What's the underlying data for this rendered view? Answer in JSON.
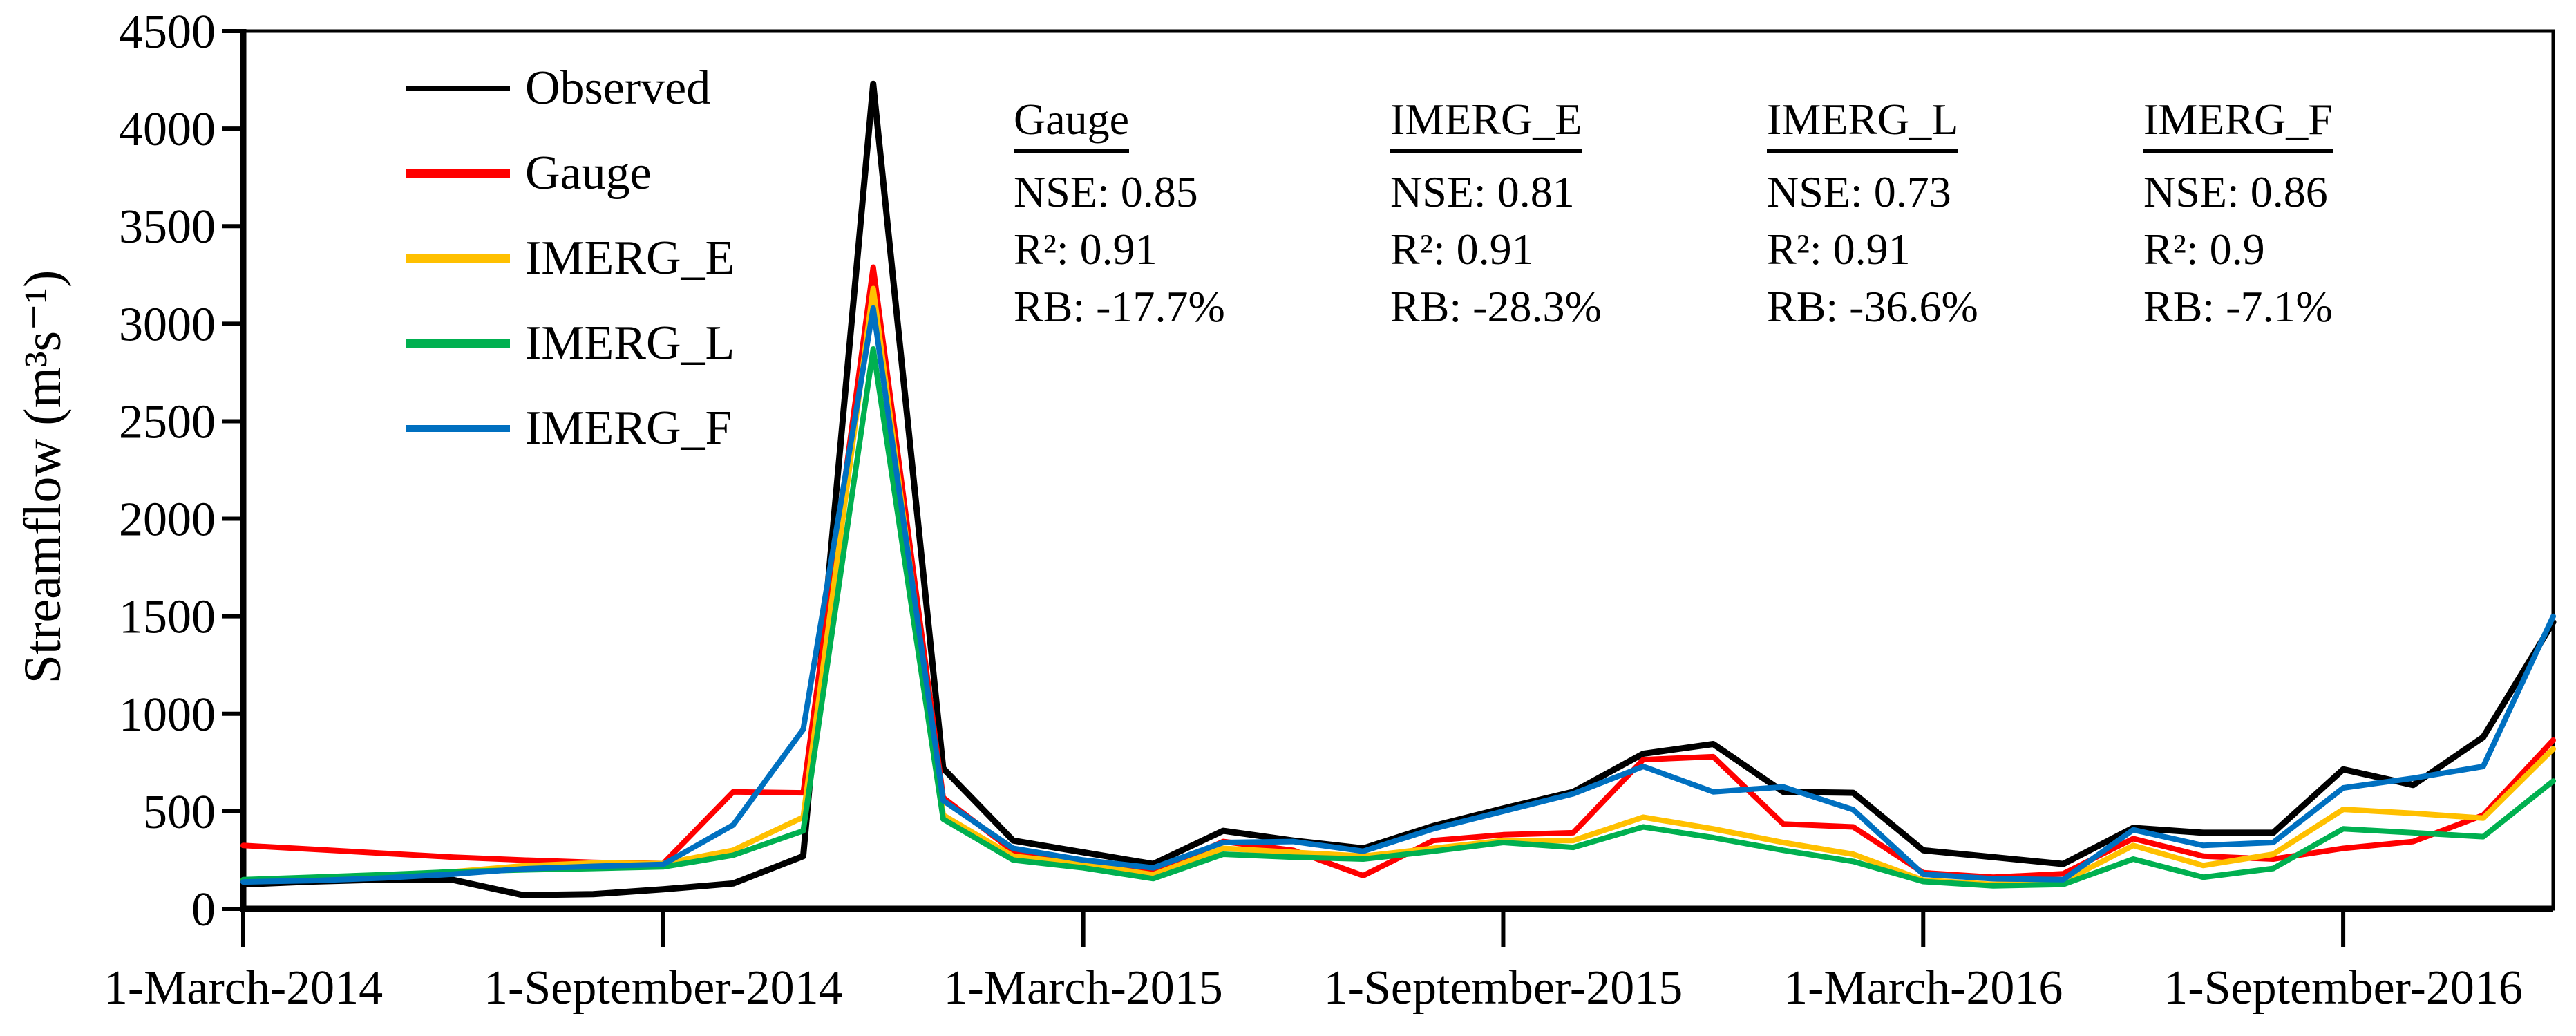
{
  "stats_panels": [
    {
      "title": "Gauge",
      "nse": "NSE: 0.85",
      "r2": "R²: 0.91",
      "rb": "RB: -17.7%"
    },
    {
      "title": "IMERG_E",
      "nse": "NSE: 0.81",
      "r2": "R²: 0.91",
      "rb": "RB: -28.3%"
    },
    {
      "title": "IMERG_L",
      "nse": "NSE: 0.73",
      "r2": "R²: 0.91",
      "rb": "RB: -36.6%"
    },
    {
      "title": "IMERG_F",
      "nse": "NSE: 0.86",
      "r2": "R²: 0.9",
      "rb": "RB: -7.1%"
    }
  ],
  "chart_data": {
    "type": "line",
    "title": "",
    "xlabel": "",
    "ylabel": "Streamflow (m³s⁻¹)",
    "ylim": [
      0,
      4500
    ],
    "grid": false,
    "legend_position": "top-left-inside",
    "x": [
      "Mar-2014",
      "Apr-2014",
      "May-2014",
      "Jun-2014",
      "Jul-2014",
      "Aug-2014",
      "Sep-2014",
      "Oct-2014",
      "Nov-2014",
      "Dec-2014",
      "Jan-2015",
      "Feb-2015",
      "Mar-2015",
      "Apr-2015",
      "May-2015",
      "Jun-2015",
      "Jul-2015",
      "Aug-2015",
      "Sep-2015",
      "Oct-2015",
      "Nov-2015",
      "Dec-2015",
      "Jan-2016",
      "Feb-2016",
      "Mar-2016",
      "Apr-2016",
      "May-2016",
      "Jun-2016",
      "Jul-2016",
      "Aug-2016",
      "Sep-2016",
      "Oct-2016",
      "Nov-2016",
      "Dec-2016"
    ],
    "x_tick_indices": [
      0,
      6,
      12,
      18,
      24,
      30
    ],
    "x_tick_labels": [
      "1-March-2014",
      "1-September-2014",
      "1-March-2015",
      "1-September-2015",
      "1-March-2016",
      "1-September-2016"
    ],
    "y_ticks": [
      0,
      500,
      1000,
      1500,
      2000,
      2500,
      3000,
      3500,
      4000,
      4500
    ],
    "series": [
      {
        "name": "Observed",
        "color": "#000000",
        "values": [
          125,
          140,
          150,
          148,
          70,
          75,
          100,
          130,
          270,
          4230,
          720,
          350,
          290,
          230,
          400,
          350,
          310,
          425,
          515,
          600,
          795,
          845,
          600,
          595,
          300,
          265,
          230,
          415,
          390,
          390,
          715,
          635,
          880,
          1470
        ]
      },
      {
        "name": "Gauge",
        "color": "#FF0000",
        "values": [
          325,
          305,
          285,
          265,
          250,
          238,
          232,
          600,
          595,
          3290,
          570,
          295,
          245,
          185,
          345,
          300,
          170,
          350,
          380,
          390,
          765,
          780,
          435,
          420,
          185,
          162,
          180,
          360,
          270,
          255,
          310,
          345,
          480,
          865
        ]
      },
      {
        "name": "IMERG_E",
        "color": "#FFC000",
        "values": [
          148,
          158,
          170,
          190,
          220,
          235,
          232,
          300,
          470,
          3180,
          480,
          270,
          230,
          175,
          310,
          290,
          270,
          310,
          350,
          350,
          470,
          410,
          340,
          280,
          147,
          125,
          140,
          325,
          222,
          280,
          510,
          490,
          465,
          820
        ]
      },
      {
        "name": "IMERG_L",
        "color": "#00B050",
        "values": [
          150,
          162,
          175,
          190,
          200,
          207,
          215,
          275,
          400,
          2870,
          460,
          250,
          210,
          155,
          280,
          265,
          255,
          295,
          340,
          315,
          420,
          365,
          300,
          243,
          140,
          118,
          125,
          255,
          162,
          207,
          410,
          390,
          370,
          655
        ]
      },
      {
        "name": "IMERG_F",
        "color": "#0070C0",
        "values": [
          138,
          145,
          158,
          178,
          205,
          218,
          228,
          430,
          920,
          3080,
          555,
          310,
          250,
          210,
          340,
          345,
          295,
          410,
          500,
          590,
          730,
          600,
          625,
          508,
          177,
          154,
          150,
          405,
          325,
          340,
          620,
          670,
          730,
          1500
        ]
      }
    ]
  }
}
